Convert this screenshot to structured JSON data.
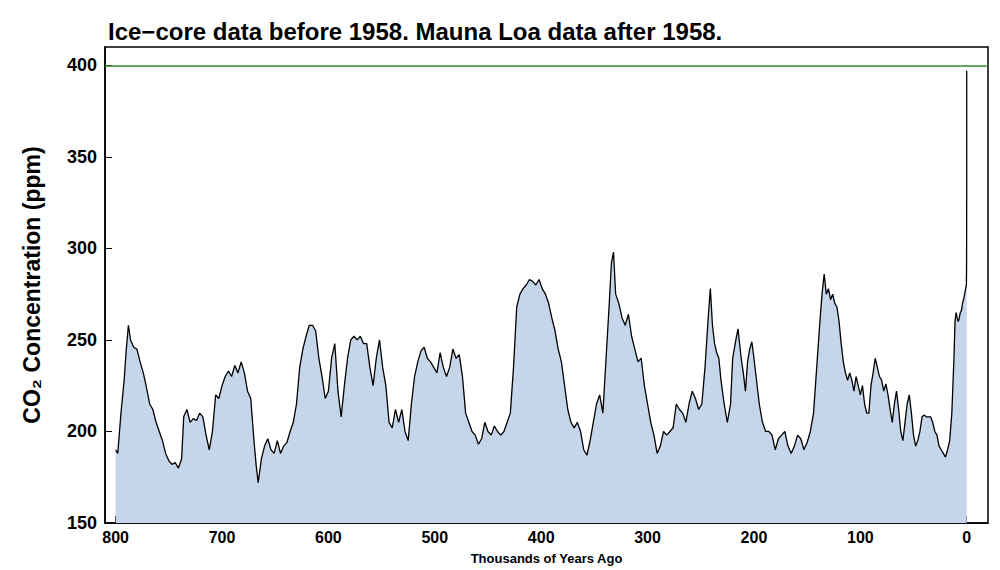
{
  "chart_data": {
    "type": "area",
    "title": "Ice−core data before 1958. Mauna Loa data after 1958.",
    "x_label": "Thousands of Years Ago",
    "y_label": "CO₂ Concentration (ppm)",
    "xlim": [
      810,
      -20
    ],
    "xticks": [
      800,
      700,
      600,
      500,
      400,
      300,
      200,
      100,
      0
    ],
    "ylim": [
      150,
      410
    ],
    "yticks": [
      150,
      200,
      250,
      300,
      350,
      400
    ],
    "grid": false,
    "color": "#c5d6ea",
    "line_color": "#000000",
    "hline": {
      "value": 400,
      "color": "#2e8b2e"
    },
    "x": [
      800,
      798,
      795,
      792,
      790,
      788,
      786,
      783,
      780,
      777,
      774,
      771,
      768,
      765,
      762,
      759,
      756,
      753,
      750,
      747,
      744,
      741,
      738,
      736,
      733,
      730,
      727,
      724,
      721,
      718,
      715,
      712,
      709,
      706,
      703,
      700,
      697,
      694,
      691,
      688,
      685,
      682,
      679,
      676,
      673,
      670,
      668,
      666,
      663,
      660,
      657,
      654,
      651,
      648,
      645,
      642,
      639,
      636,
      633,
      630,
      627,
      624,
      621,
      618,
      615,
      612,
      609,
      606,
      603,
      600,
      597,
      594,
      591,
      588,
      585,
      582,
      579,
      576,
      573,
      570,
      567,
      564,
      561,
      558,
      555,
      552,
      549,
      546,
      543,
      540,
      537,
      534,
      531,
      528,
      525,
      522,
      519,
      516,
      513,
      510,
      507,
      504,
      501,
      498,
      495,
      492,
      489,
      486,
      483,
      480,
      477,
      474,
      471,
      468,
      465,
      462,
      459,
      456,
      453,
      450,
      447,
      444,
      441,
      438,
      435,
      432,
      429,
      426,
      423,
      420,
      417,
      414,
      411,
      408,
      405,
      402,
      399,
      396,
      393,
      390,
      387,
      384,
      381,
      378,
      375,
      372,
      369,
      366,
      363,
      360,
      357,
      354,
      351,
      348,
      345,
      342,
      339,
      336,
      334,
      332,
      330,
      327,
      324,
      321,
      318,
      315,
      312,
      309,
      306,
      303,
      300,
      297,
      294,
      291,
      288,
      285,
      282,
      279,
      276,
      273,
      270,
      267,
      264,
      261,
      258,
      255,
      252,
      249,
      246,
      243,
      241,
      239,
      237,
      235,
      233,
      231,
      228,
      225,
      222,
      220,
      217,
      215,
      212,
      210,
      208,
      206,
      204,
      202,
      200,
      198,
      195,
      192,
      189,
      186,
      183,
      180,
      177,
      174,
      171,
      168,
      165,
      162,
      159,
      156,
      153,
      150,
      147,
      144,
      141,
      138,
      136,
      134,
      132,
      130,
      128,
      126,
      124,
      122,
      120,
      118,
      116,
      114,
      112,
      110,
      108,
      106,
      104,
      102,
      100,
      98,
      96,
      94,
      92,
      90,
      88,
      86,
      84,
      82,
      80,
      78,
      76,
      74,
      72,
      70,
      68,
      66,
      64,
      62,
      60,
      58,
      56,
      54,
      52,
      50,
      48,
      46,
      44,
      42,
      40,
      38,
      36,
      34,
      32,
      30,
      28,
      26,
      24,
      22,
      20,
      18,
      16,
      14,
      12,
      11,
      10,
      9,
      8,
      7,
      6,
      5,
      4,
      3,
      2,
      1,
      0.3,
      0.15,
      0.1,
      0.06,
      0.03,
      0.015,
      0.005,
      0
    ],
    "values": [
      190,
      188,
      210,
      228,
      245,
      258,
      250,
      246,
      245,
      238,
      232,
      224,
      215,
      212,
      205,
      200,
      195,
      188,
      184,
      182,
      183,
      180,
      185,
      208,
      212,
      205,
      207,
      206,
      210,
      208,
      198,
      190,
      200,
      220,
      218,
      225,
      230,
      233,
      230,
      236,
      232,
      238,
      232,
      222,
      218,
      195,
      182,
      172,
      185,
      192,
      196,
      190,
      188,
      195,
      188,
      192,
      194,
      200,
      205,
      215,
      235,
      245,
      252,
      258,
      258,
      255,
      240,
      230,
      218,
      222,
      240,
      248,
      222,
      208,
      225,
      240,
      250,
      252,
      250,
      252,
      248,
      248,
      235,
      225,
      240,
      250,
      235,
      225,
      205,
      202,
      212,
      205,
      212,
      200,
      195,
      215,
      230,
      238,
      244,
      246,
      240,
      238,
      235,
      232,
      243,
      235,
      230,
      235,
      245,
      240,
      242,
      230,
      210,
      205,
      200,
      198,
      193,
      196,
      205,
      200,
      198,
      203,
      200,
      198,
      200,
      205,
      210,
      235,
      268,
      275,
      278,
      280,
      283,
      282,
      280,
      283,
      278,
      275,
      270,
      262,
      255,
      245,
      238,
      225,
      212,
      205,
      202,
      205,
      200,
      190,
      187,
      195,
      205,
      215,
      220,
      210,
      240,
      270,
      292,
      298,
      275,
      270,
      262,
      258,
      264,
      252,
      245,
      238,
      240,
      225,
      215,
      205,
      198,
      188,
      192,
      200,
      198,
      200,
      202,
      215,
      212,
      210,
      205,
      215,
      222,
      218,
      212,
      215,
      235,
      262,
      278,
      258,
      248,
      243,
      240,
      228,
      215,
      205,
      215,
      240,
      250,
      256,
      240,
      232,
      222,
      238,
      245,
      249,
      240,
      230,
      215,
      205,
      200,
      200,
      198,
      190,
      196,
      198,
      200,
      192,
      188,
      192,
      198,
      196,
      190,
      194,
      200,
      210,
      235,
      260,
      275,
      286,
      275,
      278,
      272,
      275,
      270,
      268,
      260,
      248,
      238,
      232,
      228,
      232,
      228,
      222,
      230,
      225,
      220,
      225,
      215,
      210,
      210,
      225,
      232,
      240,
      235,
      230,
      228,
      222,
      226,
      220,
      212,
      205,
      215,
      222,
      212,
      200,
      195,
      205,
      215,
      220,
      210,
      198,
      192,
      195,
      200,
      208,
      209,
      208,
      208,
      208,
      205,
      200,
      198,
      192,
      190,
      188,
      186,
      190,
      195,
      210,
      240,
      260,
      265,
      262,
      260,
      262,
      265,
      266,
      270,
      272,
      275,
      278,
      280,
      290,
      300,
      315,
      330,
      360,
      390,
      397
    ]
  }
}
